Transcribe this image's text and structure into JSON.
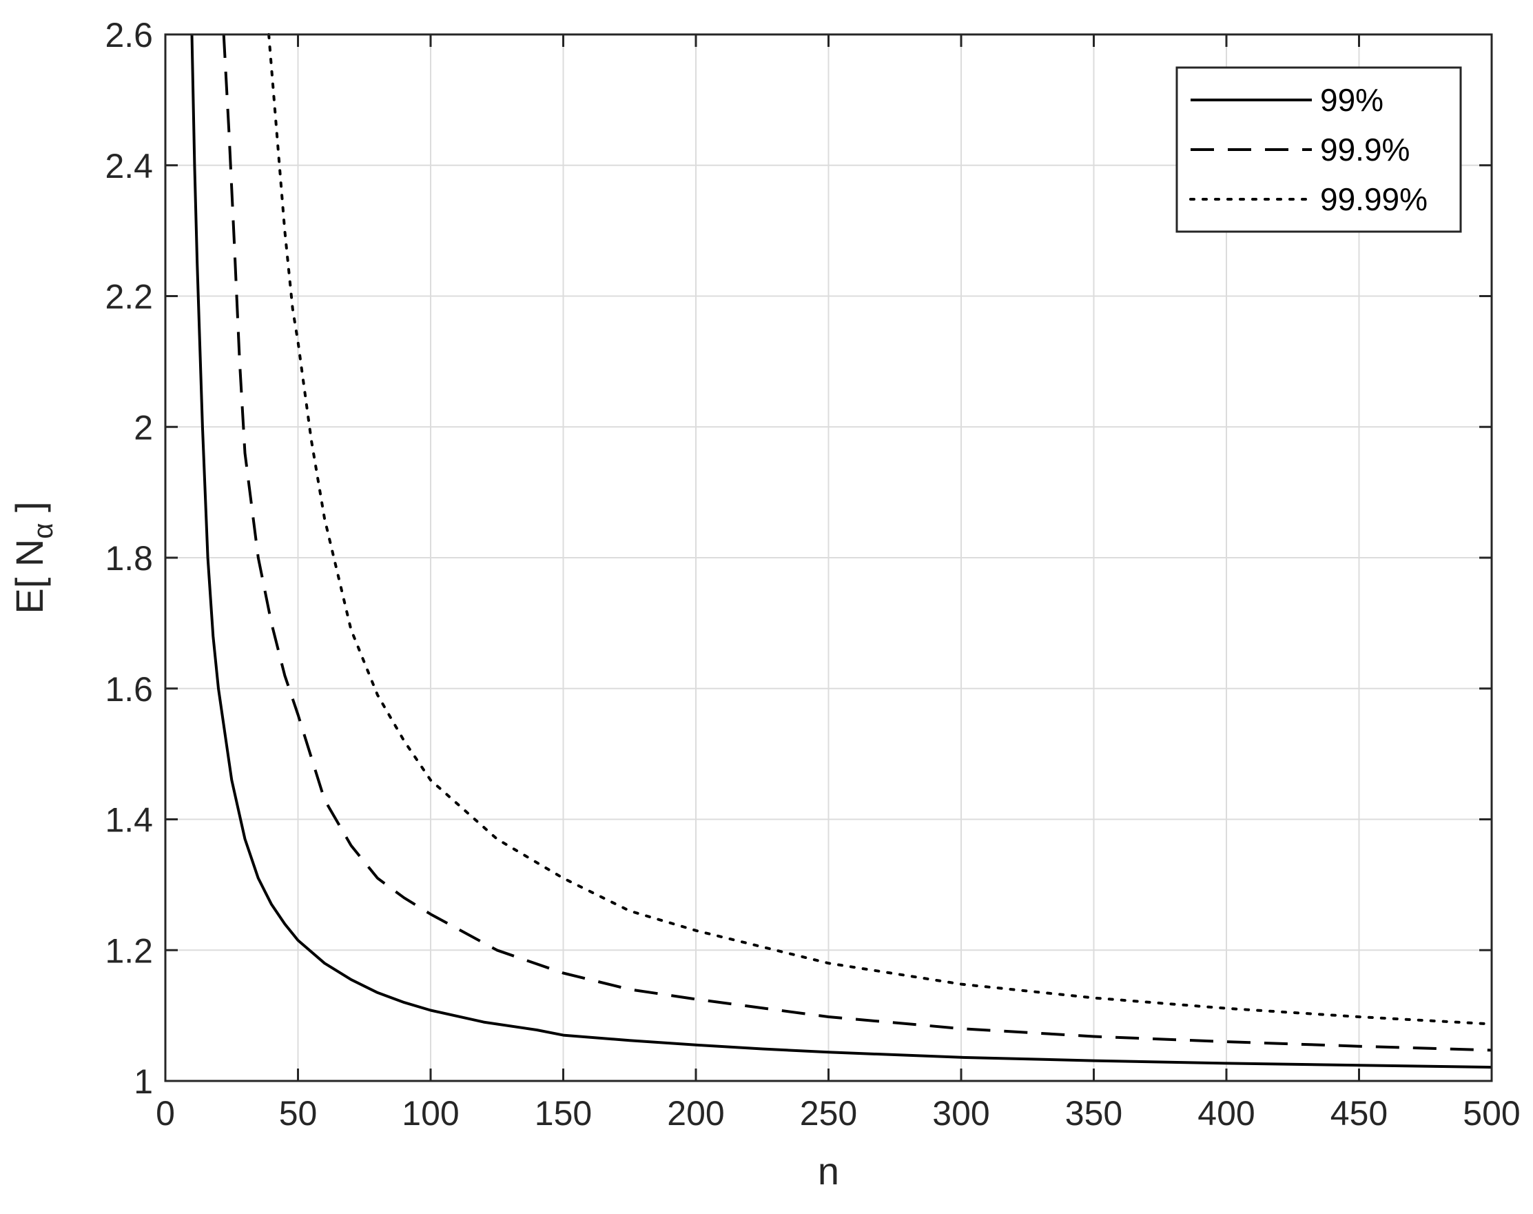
{
  "chart_data": {
    "type": "line",
    "title": "",
    "xlabel": "n",
    "ylabel": {
      "main": "E[ N",
      "subscript": "α",
      "close": " ]"
    },
    "xlim": [
      0,
      500
    ],
    "ylim": [
      1,
      2.6
    ],
    "xticks": [
      0,
      50,
      100,
      150,
      200,
      250,
      300,
      350,
      400,
      450,
      500
    ],
    "xtick_labels": [
      "0",
      "50",
      "100",
      "150",
      "200",
      "250",
      "300",
      "350",
      "400",
      "450",
      "500"
    ],
    "yticks": [
      1,
      1.2,
      1.4,
      1.6,
      1.8,
      2,
      2.2,
      2.4,
      2.6
    ],
    "ytick_labels": [
      "1",
      "1.2",
      "1.4",
      "1.6",
      "1.8",
      "2",
      "2.2",
      "2.4",
      "2.6"
    ],
    "grid": true,
    "legend_position": "top-right",
    "series": [
      {
        "name": "99%",
        "style": "solid",
        "x": [
          10,
          11,
          12,
          14,
          16,
          18,
          20,
          25,
          30,
          35,
          40,
          45,
          50,
          60,
          70,
          80,
          90,
          100,
          120,
          140,
          150,
          175,
          200,
          225,
          250,
          300,
          350,
          400,
          450,
          500
        ],
        "y": [
          2.6,
          2.4,
          2.25,
          2.0,
          1.8,
          1.68,
          1.6,
          1.46,
          1.37,
          1.31,
          1.27,
          1.24,
          1.215,
          1.18,
          1.155,
          1.135,
          1.12,
          1.108,
          1.09,
          1.078,
          1.07,
          1.062,
          1.055,
          1.049,
          1.044,
          1.036,
          1.031,
          1.027,
          1.024,
          1.021
        ]
      },
      {
        "name": "99.9%",
        "style": "dashed",
        "x": [
          22,
          24,
          26,
          28,
          30,
          35,
          40,
          45,
          50,
          60,
          70,
          80,
          90,
          100,
          125,
          150,
          175,
          200,
          250,
          300,
          350,
          400,
          450,
          500
        ],
        "y": [
          2.6,
          2.45,
          2.28,
          2.1,
          1.96,
          1.8,
          1.7,
          1.62,
          1.56,
          1.43,
          1.36,
          1.31,
          1.28,
          1.255,
          1.2,
          1.165,
          1.14,
          1.125,
          1.098,
          1.08,
          1.068,
          1.06,
          1.053,
          1.047
        ]
      },
      {
        "name": "99.99%",
        "style": "dotted",
        "x": [
          39,
          42,
          45,
          48,
          50,
          55,
          60,
          70,
          80,
          90,
          100,
          125,
          150,
          175,
          200,
          250,
          300,
          350,
          400,
          450,
          500
        ],
        "y": [
          2.6,
          2.45,
          2.3,
          2.18,
          2.13,
          1.98,
          1.86,
          1.69,
          1.59,
          1.52,
          1.46,
          1.37,
          1.31,
          1.26,
          1.23,
          1.18,
          1.148,
          1.127,
          1.111,
          1.098,
          1.087
        ]
      }
    ]
  }
}
